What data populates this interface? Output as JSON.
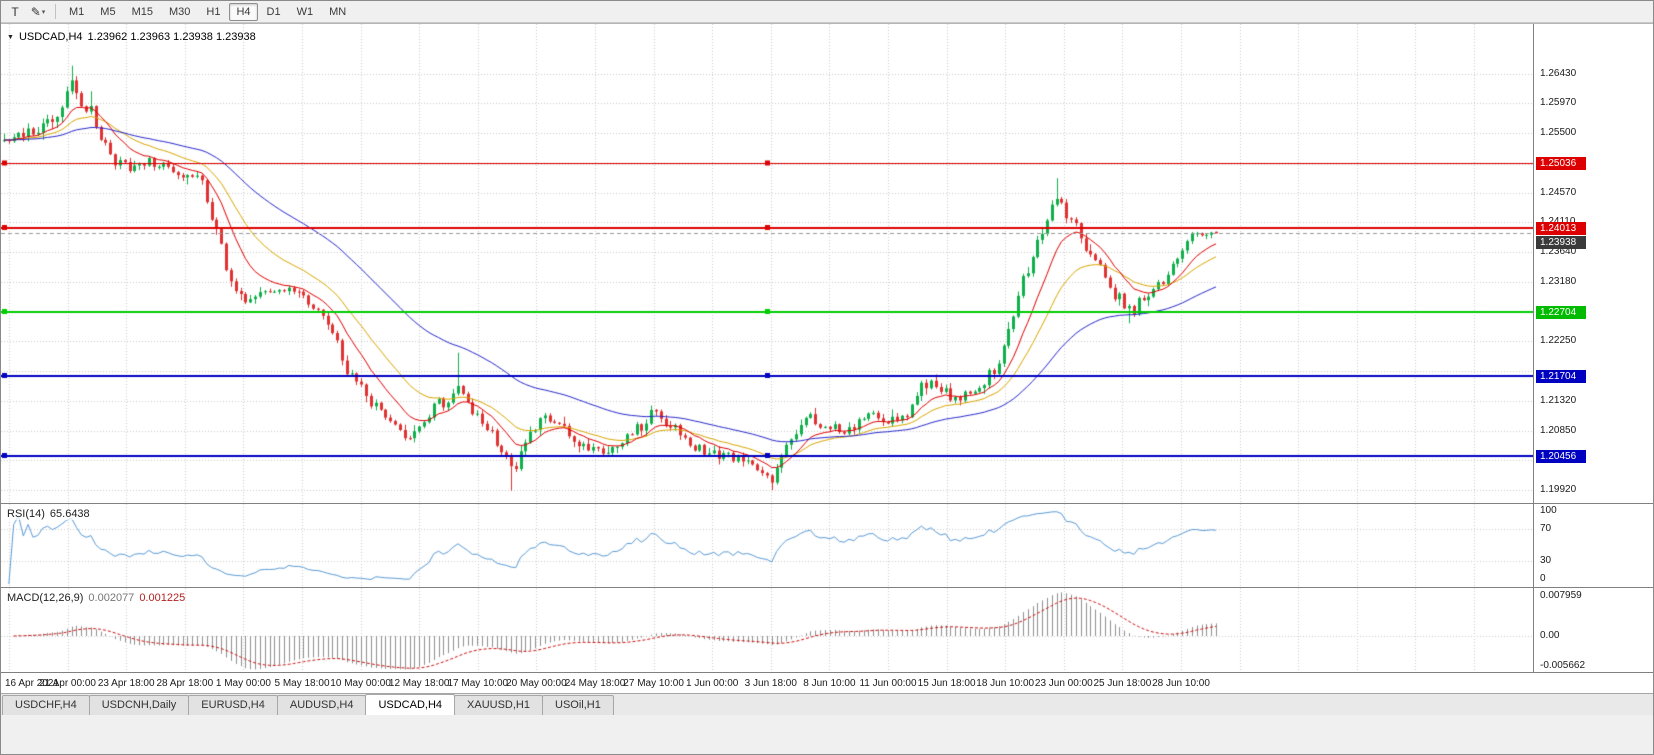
{
  "toolbar": {
    "icons": [
      {
        "name": "text-tool",
        "glyph": "T"
      },
      {
        "name": "drawing-tool",
        "glyph": "✎",
        "dropdown": "▾"
      }
    ],
    "timeframes": [
      "M1",
      "M5",
      "M15",
      "M30",
      "H1",
      "H4",
      "D1",
      "W1",
      "MN"
    ],
    "active_timeframe": "H4"
  },
  "chart": {
    "collapse_icon": "▼",
    "title": "USDCAD,H4",
    "ohlc": "1.23962 1.23963 1.23938 1.23938"
  },
  "rsi": {
    "label": "RSI(14)",
    "value": "65.6438",
    "color": "#5b9bd5",
    "scale": [
      "100",
      "70",
      "30",
      "0"
    ],
    "levels": [
      70,
      30
    ]
  },
  "macd": {
    "label": "MACD(12,26,9)",
    "value_main": "0.002077",
    "value_signal": "0.001225",
    "histogram_color": "#909090",
    "signal_color": "#cc1111",
    "scale": [
      {
        "text": "0.007959",
        "v": 0.007959
      },
      {
        "text": "0.00",
        "v": 0
      },
      {
        "text": "-0.005662",
        "v": -0.005662
      }
    ]
  },
  "price_scale": {
    "labels": [
      "1.26430",
      "1.25970",
      "1.25500",
      "1.24570",
      "1.24110",
      "1.23640",
      "1.23180",
      "1.22250",
      "1.21320",
      "1.20850",
      "1.19920"
    ],
    "gridline_only": [
      1.2503,
      1.2271,
      1.2178,
      1.2039
    ],
    "badges": [
      {
        "text": "1.25036",
        "price": 1.25036,
        "bg": "#dd0000"
      },
      {
        "text": "1.24013",
        "price": 1.24013,
        "bg": "#dd0000"
      },
      {
        "text": "1.23938",
        "price": 1.23938,
        "bg": "#3a3a3a"
      },
      {
        "text": "1.22704",
        "price": 1.22704,
        "bg": "#00bb00"
      },
      {
        "text": "1.21704",
        "price": 1.21704,
        "bg": "#0000c0"
      },
      {
        "text": "1.20456",
        "price": 1.20456,
        "bg": "#0000c0"
      }
    ]
  },
  "hlines": [
    {
      "price": 1.25036,
      "color": "#dd0000",
      "width": 1,
      "dashed": false,
      "handles": true
    },
    {
      "price": 1.24013,
      "color": "#dd0000",
      "width": 2,
      "dashed": false,
      "handles": true
    },
    {
      "price": 1.23938,
      "color": "#999999",
      "width": 1,
      "dashed": true,
      "handles": false
    },
    {
      "price": 1.22704,
      "color": "#00cc00",
      "width": 2,
      "dashed": false,
      "handles": true
    },
    {
      "price": 1.21704,
      "color": "#0000c0",
      "width": 2,
      "dashed": false,
      "handles": true
    },
    {
      "price": 1.20456,
      "color": "#0000c0",
      "width": 2,
      "dashed": false,
      "handles": true
    }
  ],
  "time_axis": {
    "labels": [
      "16 Apr 2021",
      "21 Apr 00:00",
      "23 Apr 18:00",
      "28 Apr 18:00",
      "1 May 00:00",
      "5 May 18:00",
      "10 May 00:00",
      "12 May 18:00",
      "17 May 10:00",
      "20 May 00:00",
      "24 May 18:00",
      "27 May 10:00",
      "1 Jun 00:00",
      "3 Jun 18:00",
      "8 Jun 10:00",
      "11 Jun 00:00",
      "15 Jun 18:00",
      "18 Jun 10:00",
      "23 Jun 00:00",
      "25 Jun 18:00",
      "28 Jun 10:00"
    ]
  },
  "tabs": {
    "items": [
      "USDCHF,H4",
      "USDCNH,Daily",
      "EURUSD,H4",
      "AUDUSD,H4",
      "USDCAD,H4",
      "XAUUSD,H1",
      "USOil,H1"
    ],
    "active_index": 4
  },
  "colors": {
    "grid": "#cdcdcd",
    "candle_up": "#0faf4b",
    "candle_down": "#e03232",
    "ma_fast": "#e00000",
    "ma_mid": "#d9a600",
    "ma_slow": "#2727cc",
    "background": "#ffffff"
  },
  "chart_data": {
    "type": "candlestick",
    "symbol": "USDCAD",
    "timeframe": "H4",
    "bar_count": 252,
    "price_axis": {
      "top": 1.27213,
      "bottom": 1.19733
    },
    "last_candle": {
      "o": 1.23962,
      "h": 1.23963,
      "l": 1.23938,
      "c": 1.23938
    },
    "indicators": {
      "ma_fast_period": 10,
      "ma_mid_period": 21,
      "ma_slow_period": 52,
      "rsi_period": 14,
      "macd_fast": 12,
      "macd_slow": 26,
      "macd_signal": 9
    },
    "price_path": [
      [
        0.0,
        1.2538
      ],
      [
        0.02,
        1.2552
      ],
      [
        0.04,
        1.257
      ],
      [
        0.048,
        1.259
      ],
      [
        0.055,
        1.2642
      ],
      [
        0.062,
        1.2605
      ],
      [
        0.066,
        1.257
      ],
      [
        0.07,
        1.2602
      ],
      [
        0.08,
        1.2545
      ],
      [
        0.092,
        1.2505
      ],
      [
        0.105,
        1.2498
      ],
      [
        0.117,
        1.2508
      ],
      [
        0.13,
        1.25
      ],
      [
        0.142,
        1.249
      ],
      [
        0.155,
        1.2485
      ],
      [
        0.163,
        1.247
      ],
      [
        0.175,
        1.24
      ],
      [
        0.187,
        1.2315
      ],
      [
        0.2,
        1.229
      ],
      [
        0.212,
        1.23
      ],
      [
        0.224,
        1.2295
      ],
      [
        0.237,
        1.231
      ],
      [
        0.253,
        1.228
      ],
      [
        0.27,
        1.2245
      ],
      [
        0.286,
        1.217
      ],
      [
        0.303,
        1.213
      ],
      [
        0.319,
        1.2095
      ],
      [
        0.332,
        1.2068
      ],
      [
        0.344,
        1.21
      ],
      [
        0.361,
        1.2128
      ],
      [
        0.373,
        1.2148
      ],
      [
        0.385,
        1.2118
      ],
      [
        0.398,
        1.2088
      ],
      [
        0.41,
        1.2052
      ],
      [
        0.42,
        1.2022
      ],
      [
        0.431,
        1.2068
      ],
      [
        0.443,
        1.2105
      ],
      [
        0.46,
        1.2088
      ],
      [
        0.476,
        1.2062
      ],
      [
        0.493,
        1.205
      ],
      [
        0.509,
        1.2068
      ],
      [
        0.526,
        1.2092
      ],
      [
        0.538,
        1.2118
      ],
      [
        0.55,
        1.209
      ],
      [
        0.567,
        1.2062
      ],
      [
        0.583,
        1.2052
      ],
      [
        0.6,
        1.2042
      ],
      [
        0.62,
        1.203
      ],
      [
        0.633,
        1.2002
      ],
      [
        0.645,
        1.2058
      ],
      [
        0.662,
        1.2108
      ],
      [
        0.678,
        1.2092
      ],
      [
        0.695,
        1.2086
      ],
      [
        0.711,
        1.211
      ],
      [
        0.728,
        1.2096
      ],
      [
        0.744,
        1.2112
      ],
      [
        0.761,
        1.2158
      ],
      [
        0.773,
        1.2148
      ],
      [
        0.785,
        1.2132
      ],
      [
        0.802,
        1.215
      ],
      [
        0.818,
        1.2182
      ],
      [
        0.831,
        1.2252
      ],
      [
        0.843,
        1.233
      ],
      [
        0.856,
        1.24
      ],
      [
        0.868,
        1.2452
      ],
      [
        0.88,
        1.2418
      ],
      [
        0.893,
        1.237
      ],
      [
        0.905,
        1.2338
      ],
      [
        0.917,
        1.2298
      ],
      [
        0.93,
        1.2272
      ],
      [
        0.942,
        1.2298
      ],
      [
        0.954,
        1.2312
      ],
      [
        0.967,
        1.2352
      ],
      [
        0.979,
        1.2386
      ],
      [
        0.991,
        1.2398
      ],
      [
        1.0,
        1.2395
      ]
    ],
    "spikes": [
      {
        "type": "high",
        "f": 0.055,
        "price": 1.2656
      },
      {
        "type": "high",
        "f": 0.07,
        "price": 1.2616
      },
      {
        "type": "high",
        "f": 0.373,
        "price": 1.2207
      },
      {
        "type": "low",
        "f": 0.42,
        "price": 1.1991
      },
      {
        "type": "low",
        "f": 0.633,
        "price": 1.1992
      },
      {
        "type": "high",
        "f": 0.868,
        "price": 1.248
      },
      {
        "type": "low",
        "f": 0.93,
        "price": 1.2253
      }
    ]
  }
}
